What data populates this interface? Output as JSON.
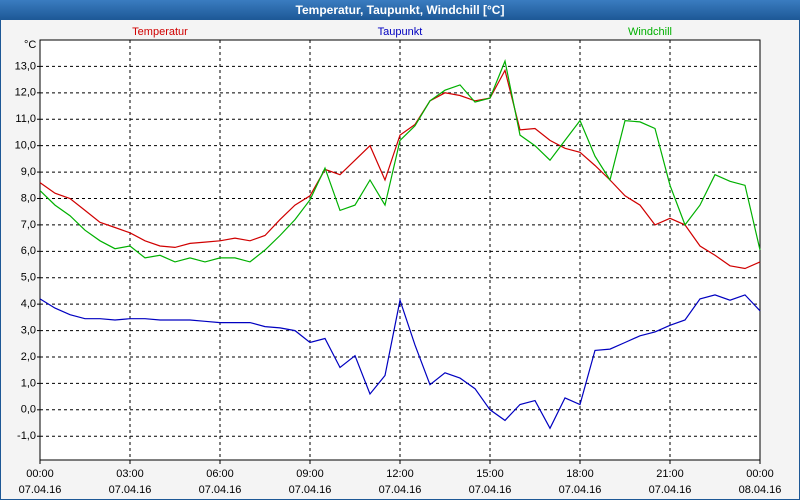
{
  "chart_data": {
    "type": "line",
    "title": "Temperatur, Taupunkt, Windchill [°C]",
    "y_unit": "°C",
    "x": [
      0,
      0.5,
      1,
      1.5,
      2,
      2.5,
      3,
      3.5,
      4,
      4.5,
      5,
      5.5,
      6,
      6.5,
      7,
      7.5,
      8,
      8.5,
      9,
      9.5,
      10,
      10.5,
      11,
      11.5,
      12,
      12.5,
      13,
      13.5,
      14,
      14.5,
      15,
      15.5,
      16,
      16.5,
      17,
      17.5,
      18,
      18.5,
      19,
      19.5,
      20,
      20.5,
      21,
      21.5,
      22,
      22.5,
      23,
      23.5,
      24
    ],
    "series": [
      {
        "name": "Temperatur",
        "color": "#d00000",
        "values": [
          8.6,
          8.2,
          8.0,
          7.55,
          7.1,
          6.9,
          6.7,
          6.4,
          6.2,
          6.15,
          6.3,
          6.35,
          6.4,
          6.5,
          6.4,
          6.6,
          7.2,
          7.75,
          8.1,
          9.1,
          8.9,
          9.45,
          10.0,
          8.7,
          10.4,
          10.8,
          11.7,
          12.0,
          11.9,
          11.7,
          11.8,
          12.85,
          10.6,
          10.65,
          10.2,
          9.9,
          9.75,
          9.25,
          8.7,
          8.1,
          7.75,
          7.0,
          7.25,
          7.0,
          6.2,
          5.85,
          5.45,
          5.35,
          5.6
        ]
      },
      {
        "name": "Taupunkt",
        "color": "#0000c0",
        "values": [
          4.2,
          3.85,
          3.6,
          3.45,
          3.45,
          3.4,
          3.45,
          3.45,
          3.4,
          3.4,
          3.4,
          3.35,
          3.3,
          3.3,
          3.3,
          3.15,
          3.1,
          3.0,
          2.55,
          2.7,
          1.6,
          2.05,
          0.6,
          1.3,
          4.15,
          2.45,
          0.95,
          1.4,
          1.2,
          0.8,
          0.0,
          -0.4,
          0.2,
          0.35,
          -0.7,
          0.45,
          0.2,
          2.25,
          2.3,
          2.55,
          2.8,
          2.95,
          3.2,
          3.4,
          4.2,
          4.35,
          4.15,
          4.35,
          3.75
        ]
      },
      {
        "name": "Windchill",
        "color": "#00b000",
        "values": [
          8.3,
          7.75,
          7.35,
          6.8,
          6.4,
          6.1,
          6.2,
          5.75,
          5.85,
          5.6,
          5.75,
          5.6,
          5.75,
          5.75,
          5.6,
          6.05,
          6.6,
          7.2,
          7.95,
          9.15,
          7.55,
          7.75,
          8.7,
          7.75,
          10.2,
          10.75,
          11.7,
          12.1,
          12.3,
          11.65,
          11.8,
          13.2,
          10.4,
          10.0,
          9.45,
          10.2,
          10.95,
          9.6,
          8.7,
          10.95,
          10.9,
          10.65,
          8.5,
          7.0,
          7.75,
          8.9,
          8.65,
          8.5,
          6.05
        ]
      }
    ],
    "xlim": [
      0,
      24
    ],
    "xticks": [
      {
        "value": 0,
        "label": "00:00"
      },
      {
        "value": 3,
        "label": "03:00"
      },
      {
        "value": 6,
        "label": "06:00"
      },
      {
        "value": 9,
        "label": "09:00"
      },
      {
        "value": 12,
        "label": "12:00"
      },
      {
        "value": 15,
        "label": "15:00"
      },
      {
        "value": 18,
        "label": "18:00"
      },
      {
        "value": 21,
        "label": "21:00"
      },
      {
        "value": 24,
        "label": "00:00"
      }
    ],
    "xtick_dates": [
      "07.04.16",
      "07.04.16",
      "07.04.16",
      "07.04.16",
      "07.04.16",
      "07.04.16",
      "07.04.16",
      "07.04.16",
      "08.04.16"
    ],
    "ylim": [
      -1.9,
      14.0
    ],
    "yticks": [
      {
        "value": -1,
        "label": "-1,0"
      },
      {
        "value": 0,
        "label": "0,0"
      },
      {
        "value": 1,
        "label": "1,0"
      },
      {
        "value": 2,
        "label": "2,0"
      },
      {
        "value": 3,
        "label": "3,0"
      },
      {
        "value": 4,
        "label": "4,0"
      },
      {
        "value": 5,
        "label": "5,0"
      },
      {
        "value": 6,
        "label": "6,0"
      },
      {
        "value": 7,
        "label": "7,0"
      },
      {
        "value": 8,
        "label": "8,0"
      },
      {
        "value": 9,
        "label": "9,0"
      },
      {
        "value": 10,
        "label": "10,0"
      },
      {
        "value": 11,
        "label": "11,0"
      },
      {
        "value": 12,
        "label": "12,0"
      },
      {
        "value": 13,
        "label": "13,0"
      }
    ],
    "grid": true
  }
}
